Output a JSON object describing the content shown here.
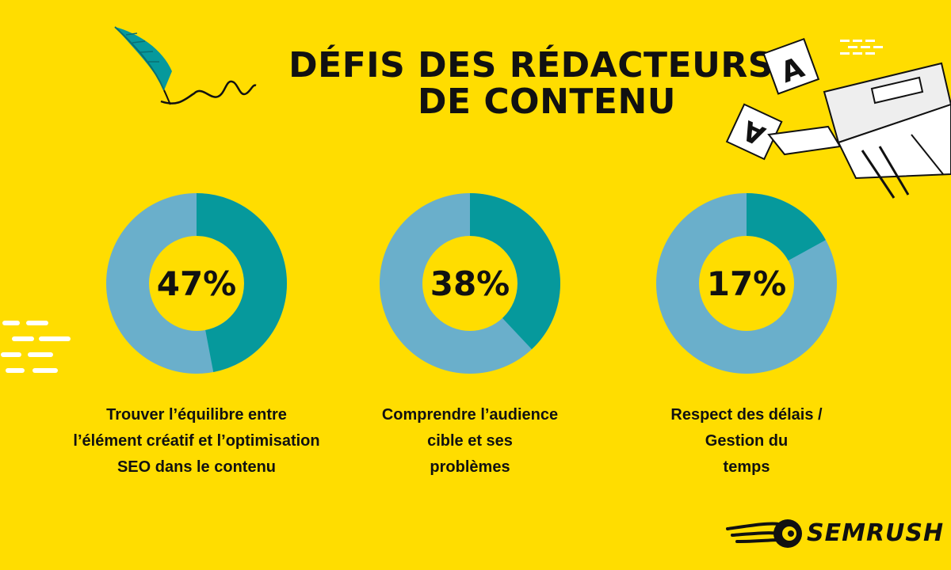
{
  "header": {
    "title_line1": "DÉFIS DES RÉDACTEURS",
    "title_line2": "DE CONTENU"
  },
  "colors": {
    "background": "#FFDD00",
    "filled": "#06999C",
    "remaining": "#6AAFCB",
    "text": "#111111"
  },
  "chart_data": {
    "type": "pie",
    "variant": "donut",
    "series": [
      {
        "label": "47%",
        "value": 47,
        "caption": [
          "Trouver l’équilibre entre",
          "l’élément créatif et l’optimisation",
          "SEO dans le contenu"
        ]
      },
      {
        "label": "38%",
        "value": 38,
        "caption": [
          "Comprendre l’audience",
          "cible et ses",
          "problèmes"
        ]
      },
      {
        "label": "17%",
        "value": 17,
        "caption": [
          "Respect des délais /",
          "Gestion du",
          "temps"
        ]
      }
    ]
  },
  "brand": {
    "logo_text": "SEMRUSH",
    "logo_icon": "semrush-fireball-icon"
  },
  "decorations": {
    "left_icon": "feather-quill-icon",
    "right_icon": "typewriter-icon",
    "left_edge": "speed-lines-icon"
  }
}
